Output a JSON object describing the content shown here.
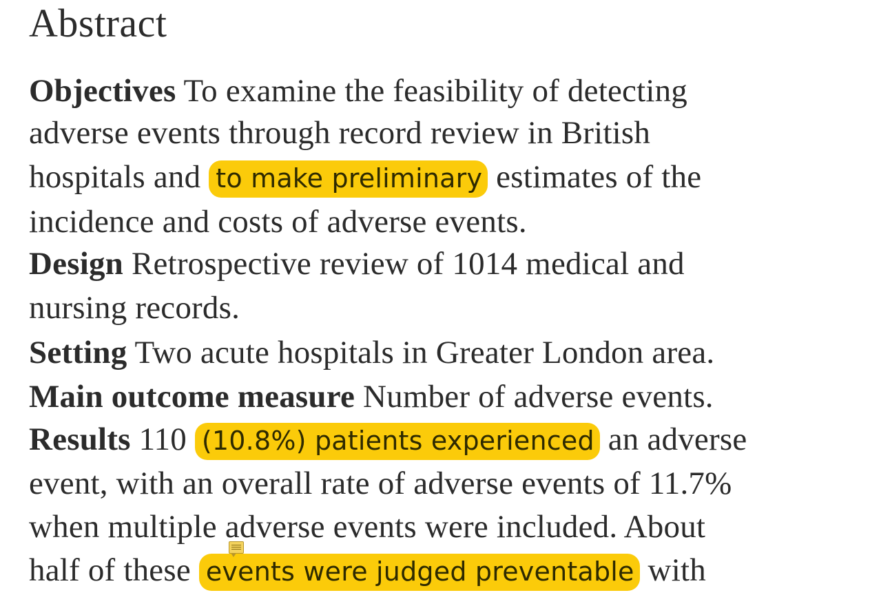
{
  "heading": "Abstract",
  "objectives": {
    "label": "Objectives",
    "line1_rest": " To examine the feasibility of detecting",
    "line2": "adverse events through record review in British",
    "line3_pre": "hospitals and ",
    "line3_highlight": "to make preliminary",
    "line3_post": " estimates of the",
    "line4": "incidence and costs of adverse events."
  },
  "design": {
    "label": "Design",
    "line1_rest": " Retrospective review of 1014 medical and",
    "line2": "nursing records."
  },
  "setting": {
    "label": "Setting",
    "rest": " Two acute hospitals in Greater London area."
  },
  "main_outcome": {
    "label": "Main outcome measure",
    "rest": " Number of adverse events."
  },
  "results": {
    "label": "Results",
    "line1_pre": " 110 ",
    "line1_highlight": "(10.8%) patients experienced",
    "line1_post": " an adverse",
    "line2": "event, with an overall rate of adverse events of 11.7%",
    "line3": "when multiple adverse events were included. About",
    "line4_pre": "half of these ",
    "line4_highlight": "events were judged preventable",
    "line4_post": " with"
  },
  "annotation": {
    "icon": "sticky-note-icon",
    "highlight_color": "#fbcb0a"
  }
}
